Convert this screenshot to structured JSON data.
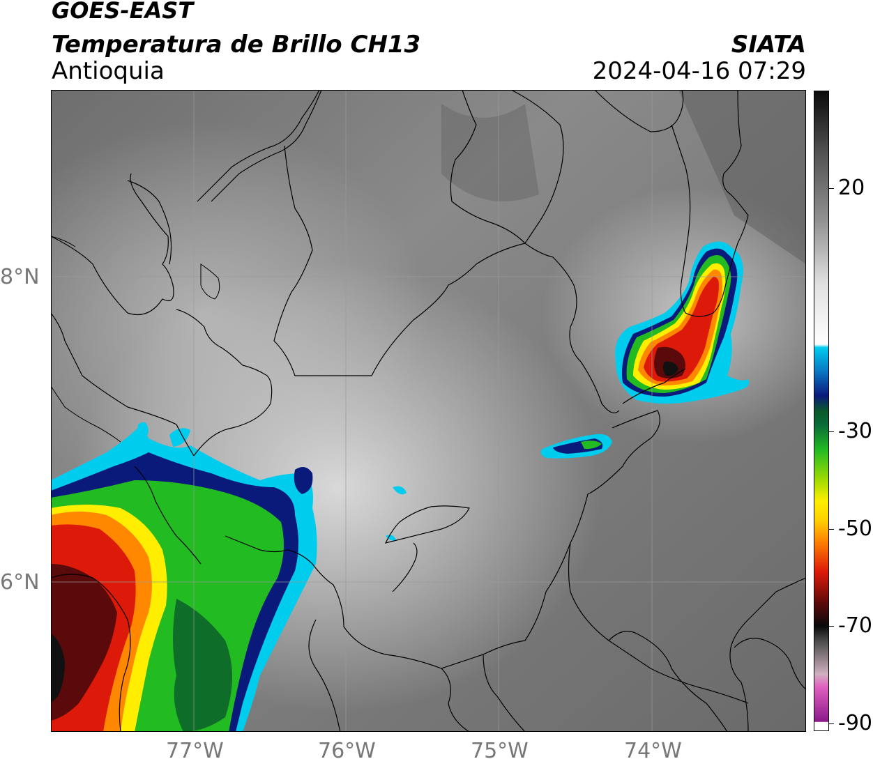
{
  "header": {
    "satellite": "GOES-EAST",
    "product": "Temperatura de Brillo CH13",
    "region": "Antioquia",
    "brand": "SIATA",
    "timestamp": "2024-04-16 07:29"
  },
  "map": {
    "lat_labels": [
      "8°N",
      "6°N"
    ],
    "lon_labels": [
      "77°W",
      "76°W",
      "75°W",
      "74°W"
    ]
  },
  "colorbar": {
    "ticks": [
      "20",
      "-30",
      "-50",
      "-70",
      "-90"
    ],
    "colors": {
      "magenta": "#c040c0",
      "black": "#111111",
      "dark_red": "#5a0a0a",
      "red": "#dd1a0a",
      "orange": "#ff8800",
      "yellow": "#ffee00",
      "green": "#22bb22",
      "dark_green": "#0a5a2a",
      "navy": "#0a1a7a",
      "cyan": "#00ccee",
      "white": "#ffffff",
      "gray": "#808080",
      "near_black": "#1a1a1a"
    }
  }
}
